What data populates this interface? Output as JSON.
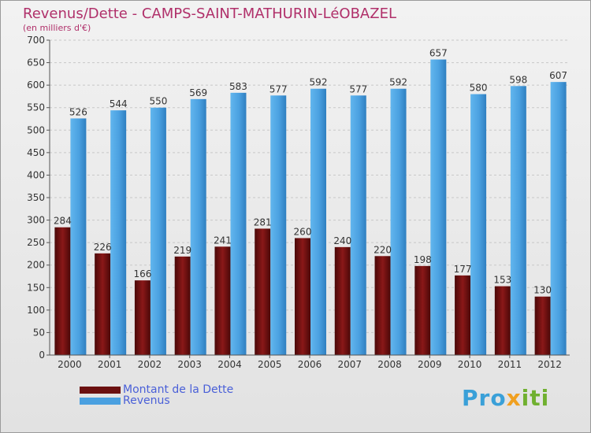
{
  "page": {
    "title": "Revenus/Dette - CAMPS-SAINT-MATHURIN-LéOBAZEL",
    "subtitle": "(en milliers d'€)"
  },
  "legend": {
    "debt_label": "Montant de la Dette",
    "revenue_label": "Revenus"
  },
  "logo": {
    "text": "Proxiti"
  },
  "colors": {
    "debt": "#6b1010",
    "revenue": "#4aa0e0",
    "title": "#b0306a",
    "legend_text": "#4a60d8"
  },
  "chart_data": {
    "type": "bar",
    "title": "Revenus/Dette - CAMPS-SAINT-MATHURIN-LéOBAZEL",
    "ylabel": "(en milliers d'€)",
    "xlabel": "",
    "categories": [
      "2000",
      "2001",
      "2002",
      "2003",
      "2004",
      "2005",
      "2006",
      "2007",
      "2008",
      "2009",
      "2010",
      "2011",
      "2012"
    ],
    "series": [
      {
        "name": "Montant de la Dette",
        "values": [
          284,
          226,
          166,
          219,
          241,
          281,
          260,
          240,
          220,
          198,
          177,
          153,
          130
        ]
      },
      {
        "name": "Revenus",
        "values": [
          526,
          544,
          550,
          569,
          583,
          577,
          592,
          577,
          592,
          657,
          580,
          598,
          607
        ]
      }
    ],
    "ylim": [
      0,
      700
    ],
    "yticks": [
      0,
      50,
      100,
      150,
      200,
      250,
      300,
      350,
      400,
      450,
      500,
      550,
      600,
      650,
      700
    ],
    "grid": true,
    "legend_position": "bottom-left"
  }
}
